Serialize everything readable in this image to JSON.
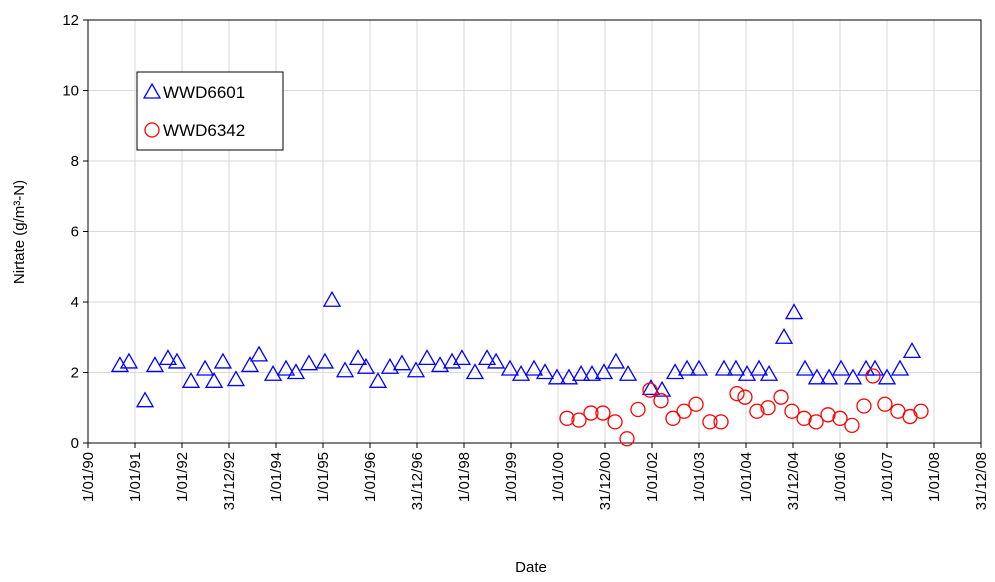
{
  "chart_data": {
    "type": "scatter",
    "xlabel": "Date",
    "ylabel": "Nirtate (g/m³-N)",
    "grid": true,
    "legend": "upper left",
    "xlim": [
      32874,
      39809
    ],
    "xticks": [
      {
        "value": 32874,
        "label": "1/01/90"
      },
      {
        "value": 33239,
        "label": "1/01/91"
      },
      {
        "value": 33604,
        "label": "1/01/92"
      },
      {
        "value": 33969,
        "label": "31/12/92"
      },
      {
        "value": 34334,
        "label": "1/01/94"
      },
      {
        "value": 34699,
        "label": "1/01/95"
      },
      {
        "value": 35064,
        "label": "1/01/96"
      },
      {
        "value": 35429,
        "label": "31/12/96"
      },
      {
        "value": 35794,
        "label": "1/01/98"
      },
      {
        "value": 36159,
        "label": "1/01/99"
      },
      {
        "value": 36524,
        "label": "1/01/00"
      },
      {
        "value": 36889,
        "label": "31/12/00"
      },
      {
        "value": 37254,
        "label": "1/01/02"
      },
      {
        "value": 37619,
        "label": "1/01/03"
      },
      {
        "value": 37984,
        "label": "1/01/04"
      },
      {
        "value": 38349,
        "label": "31/12/04"
      },
      {
        "value": 38714,
        "label": "1/01/06"
      },
      {
        "value": 39079,
        "label": "1/01/07"
      },
      {
        "value": 39444,
        "label": "1/01/08"
      },
      {
        "value": 39809,
        "label": "31/12/08"
      }
    ],
    "ylim": [
      0,
      12
    ],
    "yticks": [
      0,
      2,
      4,
      6,
      8,
      10,
      12
    ],
    "series": [
      {
        "name": "WWD6601",
        "color": "#0000ff",
        "marker": "triangle",
        "x": [
          33122,
          33192,
          33317,
          33394,
          33495,
          33565,
          33674,
          33783,
          33853,
          33922,
          34023,
          34132,
          34202,
          34311,
          34412,
          34489,
          34590,
          34714,
          34769,
          34870,
          34971,
          35033,
          35126,
          35219,
          35312,
          35421,
          35507,
          35608,
          35701,
          35778,
          35879,
          35973,
          36043,
          36151,
          36237,
          36338,
          36423,
          36516,
          36609,
          36703,
          36788,
          36881,
          36974,
          37068,
          37246,
          37332,
          37433,
          37526,
          37619,
          37813,
          37906,
          37992,
          38085,
          38163,
          38279,
          38357,
          38442,
          38535,
          38629,
          38722,
          38815,
          38916,
          38986,
          39079,
          39180,
          39273
        ],
        "values": [
          2.2,
          2.3,
          1.2,
          2.2,
          2.4,
          2.3,
          1.75,
          2.1,
          1.75,
          2.3,
          1.8,
          2.2,
          2.5,
          1.95,
          2.1,
          2.0,
          2.25,
          2.3,
          4.05,
          2.05,
          2.4,
          2.15,
          1.75,
          2.15,
          2.25,
          2.05,
          2.4,
          2.2,
          2.3,
          2.4,
          2.0,
          2.4,
          2.3,
          2.1,
          1.95,
          2.1,
          2.0,
          1.85,
          1.85,
          1.95,
          1.95,
          2.0,
          2.3,
          1.95,
          1.55,
          1.5,
          2.0,
          2.1,
          2.1,
          2.1,
          2.1,
          1.95,
          2.1,
          1.95,
          3.0,
          3.7,
          2.1,
          1.85,
          1.85,
          2.1,
          1.85,
          2.1,
          2.1,
          1.85,
          2.1,
          2.6
        ]
      },
      {
        "name": "WWD6342",
        "color": "#ff0000",
        "marker": "circle",
        "x": [
          36594,
          36687,
          36780,
          36873,
          36967,
          37060,
          37145,
          37238,
          37324,
          37417,
          37503,
          37596,
          37704,
          37790,
          37914,
          37976,
          38069,
          38155,
          38256,
          38341,
          38435,
          38528,
          38621,
          38714,
          38807,
          38900,
          38970,
          39063,
          39164,
          39258,
          39343
        ],
        "values": [
          0.7,
          0.65,
          0.85,
          0.85,
          0.6,
          0.12,
          0.95,
          1.5,
          1.2,
          0.7,
          0.9,
          1.1,
          0.6,
          0.6,
          1.4,
          1.3,
          0.9,
          1.0,
          1.3,
          0.9,
          0.7,
          0.6,
          0.8,
          0.7,
          0.5,
          1.05,
          1.9,
          1.1,
          0.9,
          0.75,
          0.9
        ]
      }
    ]
  }
}
